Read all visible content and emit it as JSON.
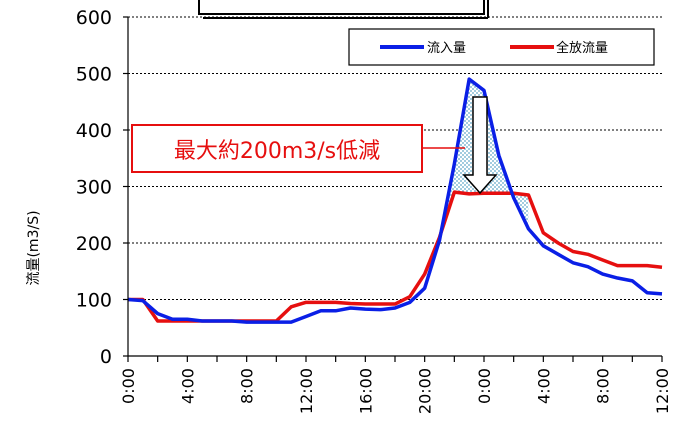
{
  "chart_data": {
    "type": "line",
    "title": "",
    "xlabel": "",
    "ylabel": "流量(m3/S)",
    "ylim": [
      0,
      600
    ],
    "yticks": [
      0,
      100,
      200,
      300,
      400,
      500,
      600
    ],
    "x_hours": [
      0,
      1,
      2,
      3,
      4,
      5,
      6,
      7,
      8,
      9,
      10,
      11,
      12,
      13,
      14,
      15,
      16,
      17,
      18,
      19,
      20,
      21,
      22,
      23,
      24,
      25,
      26,
      27,
      28,
      29,
      30,
      31,
      32,
      33,
      34,
      35,
      36
    ],
    "x_tick_labels": [
      "0:00",
      "4:00",
      "8:00",
      "12:00",
      "16:00",
      "20:00",
      "0:00",
      "4:00",
      "8:00",
      "12:00"
    ],
    "grid": "horizontal-dashed",
    "legend_position": "top-right",
    "series": [
      {
        "name": "流入量",
        "color": "#0a1fe6",
        "values": [
          100,
          98,
          75,
          65,
          65,
          62,
          62,
          62,
          60,
          60,
          60,
          60,
          70,
          80,
          80,
          85,
          83,
          82,
          85,
          95,
          120,
          205,
          340,
          490,
          470,
          355,
          280,
          225,
          195,
          180,
          165,
          158,
          145,
          138,
          133,
          112,
          110
        ]
      },
      {
        "name": "全放流量",
        "color": "#e60f0f",
        "values": [
          100,
          100,
          62,
          62,
          62,
          62,
          62,
          62,
          62,
          62,
          62,
          87,
          95,
          95,
          95,
          93,
          92,
          92,
          92,
          105,
          145,
          210,
          290,
          287,
          288,
          288,
          288,
          285,
          218,
          200,
          185,
          180,
          170,
          160,
          160,
          160,
          157
        ]
      }
    ],
    "annotation": {
      "text": "最大約200m3/s低減",
      "color": "#e60f0f"
    }
  }
}
